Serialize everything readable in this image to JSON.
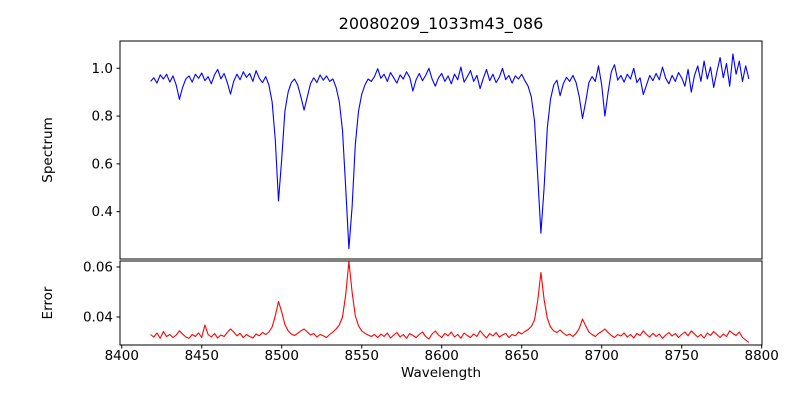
{
  "title": "20080209_1033m43_086",
  "chart_data": {
    "type": "line",
    "title": "20080209_1033m43_086",
    "xlabel": "Wavelength",
    "grid": false,
    "legend": null,
    "xlim": [
      8398.9,
      8800.2
    ],
    "xticks": [
      8400,
      8450,
      8500,
      8550,
      8600,
      8650,
      8700,
      8750,
      8800
    ],
    "xtick_labels": [
      "8400",
      "8450",
      "8500",
      "8550",
      "8600",
      "8650",
      "8700",
      "8750",
      "8800"
    ],
    "x_start": 8418,
    "x_step": 2,
    "panels": [
      {
        "name": "spectrum",
        "ylabel": "Spectrum",
        "color": "#0000ff",
        "ylim": [
          0.202,
          1.114
        ],
        "yticks": [
          1.0,
          0.8,
          0.6,
          0.4
        ],
        "ytick_labels": [
          "1.0",
          "0.8",
          "0.6",
          "0.4"
        ],
        "features": "absorption lines (Ca II triplet) at 8498, 8542, 8662 with depths to 0.445, 0.245, 0.31; weaker dips near 8436, 8468, 8514, 8674, 8688, 8702, 8726; noisy continuum near 0.96",
        "values": [
          0.945,
          0.96,
          0.938,
          0.972,
          0.955,
          0.975,
          0.942,
          0.968,
          0.93,
          0.87,
          0.92,
          0.955,
          0.968,
          0.942,
          0.975,
          0.958,
          0.98,
          0.948,
          0.965,
          0.935,
          0.972,
          0.995,
          0.956,
          0.978,
          0.94,
          0.892,
          0.945,
          0.975,
          0.952,
          0.985,
          0.962,
          0.978,
          0.945,
          0.99,
          0.958,
          0.94,
          0.965,
          0.93,
          0.86,
          0.7,
          0.445,
          0.62,
          0.82,
          0.9,
          0.94,
          0.955,
          0.93,
          0.88,
          0.825,
          0.88,
          0.935,
          0.96,
          0.94,
          0.972,
          0.95,
          0.968,
          0.945,
          0.955,
          0.92,
          0.86,
          0.74,
          0.5,
          0.245,
          0.42,
          0.68,
          0.82,
          0.89,
          0.93,
          0.955,
          0.945,
          0.965,
          0.998,
          0.958,
          0.975,
          0.945,
          0.982,
          0.96,
          0.938,
          0.972,
          0.955,
          0.985,
          0.962,
          0.905,
          0.952,
          0.978,
          0.948,
          0.97,
          1.0,
          0.955,
          0.925,
          0.96,
          0.978,
          0.945,
          0.968,
          0.935,
          0.975,
          0.952,
          1.005,
          0.942,
          0.965,
          0.99,
          0.945,
          0.97,
          0.915,
          0.958,
          0.995,
          0.948,
          0.975,
          0.94,
          0.962,
          1.0,
          0.952,
          0.97,
          0.938,
          0.968,
          0.955,
          0.975,
          0.948,
          0.925,
          0.88,
          0.78,
          0.55,
          0.31,
          0.5,
          0.75,
          0.87,
          0.93,
          0.95,
          0.885,
          0.935,
          0.962,
          0.945,
          0.97,
          0.94,
          0.88,
          0.79,
          0.86,
          0.94,
          0.965,
          0.945,
          1.01,
          0.93,
          0.8,
          0.9,
          0.985,
          1.015,
          0.95,
          0.97,
          0.942,
          0.975,
          0.955,
          1.0,
          0.94,
          0.96,
          0.89,
          0.93,
          0.97,
          0.948,
          0.978,
          0.952,
          1.005,
          0.958,
          0.935,
          0.97,
          0.945,
          0.982,
          0.96,
          0.925,
          0.995,
          0.9,
          0.97,
          1.01,
          0.945,
          1.03,
          0.955,
          1.005,
          0.92,
          0.985,
          1.045,
          0.96,
          1.02,
          0.925,
          1.06,
          0.975,
          1.03,
          0.945,
          1.01,
          0.955
        ]
      },
      {
        "name": "error",
        "ylabel": "Error",
        "color": "#ff0000",
        "ylim": [
          0.0288,
          0.0624
        ],
        "yticks": [
          0.06,
          0.04
        ],
        "ytick_labels": [
          "0.06",
          "0.04"
        ],
        "features": "error peaks at 8498 (0.046), 8542 (0.062), 8662 (0.058), small bump 8688 (0.039); baseline near 0.033",
        "values": [
          0.033,
          0.032,
          0.0336,
          0.0315,
          0.0342,
          0.0322,
          0.033,
          0.0318,
          0.0328,
          0.0345,
          0.0332,
          0.032,
          0.0315,
          0.033,
          0.0322,
          0.0336,
          0.0318,
          0.0368,
          0.033,
          0.032,
          0.0334,
          0.0316,
          0.0328,
          0.0322,
          0.0338,
          0.0352,
          0.034,
          0.0325,
          0.0335,
          0.0318,
          0.033,
          0.0322,
          0.0316,
          0.0332,
          0.0325,
          0.0338,
          0.033,
          0.034,
          0.036,
          0.0405,
          0.0462,
          0.042,
          0.037,
          0.0345,
          0.0332,
          0.0326,
          0.0335,
          0.0345,
          0.0352,
          0.034,
          0.0328,
          0.0334,
          0.032,
          0.033,
          0.0325,
          0.0318,
          0.033,
          0.034,
          0.0352,
          0.0368,
          0.04,
          0.0488,
          0.0622,
          0.05,
          0.0405,
          0.0365,
          0.0345,
          0.0335,
          0.0328,
          0.0322,
          0.033,
          0.0318,
          0.0332,
          0.0322,
          0.0336,
          0.0316,
          0.0328,
          0.0338,
          0.032,
          0.033,
          0.0315,
          0.0334,
          0.0326,
          0.0318,
          0.033,
          0.034,
          0.0322,
          0.0312,
          0.0332,
          0.0344,
          0.0328,
          0.0318,
          0.0335,
          0.0325,
          0.034,
          0.032,
          0.033,
          0.0315,
          0.0336,
          0.0326,
          0.0318,
          0.0332,
          0.0322,
          0.0345,
          0.033,
          0.0316,
          0.0334,
          0.0324,
          0.0338,
          0.032,
          0.0328,
          0.0335,
          0.0318,
          0.033,
          0.0325,
          0.034,
          0.0332,
          0.0342,
          0.035,
          0.0362,
          0.0388,
          0.0465,
          0.0578,
          0.047,
          0.0395,
          0.036,
          0.0345,
          0.0338,
          0.0348,
          0.0336,
          0.0326,
          0.0332,
          0.0322,
          0.0335,
          0.0355,
          0.0392,
          0.0365,
          0.034,
          0.033,
          0.0322,
          0.0334,
          0.0342,
          0.0352,
          0.0338,
          0.0326,
          0.0318,
          0.033,
          0.0324,
          0.0336,
          0.032,
          0.033,
          0.0316,
          0.0334,
          0.0326,
          0.0345,
          0.033,
          0.032,
          0.0335,
          0.0322,
          0.0332,
          0.0315,
          0.0328,
          0.0338,
          0.0324,
          0.0334,
          0.0318,
          0.033,
          0.034,
          0.0325,
          0.0345,
          0.0332,
          0.032,
          0.033,
          0.0316,
          0.0336,
          0.0326,
          0.0342,
          0.033,
          0.0318,
          0.0332,
          0.0322,
          0.0345,
          0.0334,
          0.0326,
          0.034,
          0.0318,
          0.0308,
          0.0298
        ]
      }
    ]
  }
}
